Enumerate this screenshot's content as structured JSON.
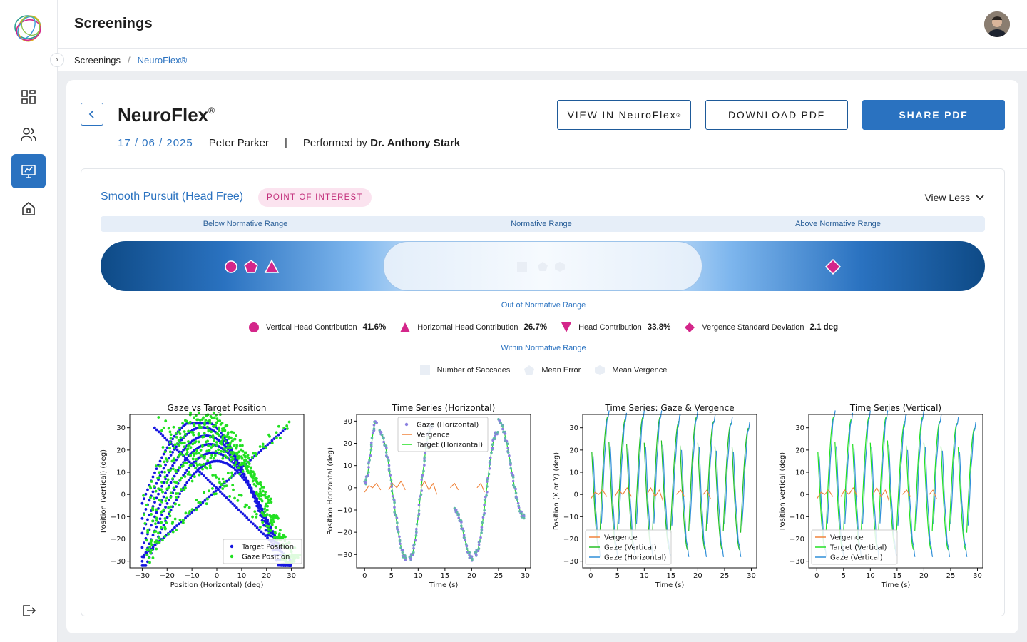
{
  "app": {
    "page_title": "Screenings"
  },
  "breadcrumb": {
    "root": "Screenings",
    "separator": "/",
    "current": "NeuroFlex®"
  },
  "header": {
    "title": "NeuroFlex",
    "title_mark": "®",
    "date": "17 / 06 / 2025",
    "patient": "Peter Parker",
    "pipe": "|",
    "performed_by_label": "Performed by",
    "performed_by": "Dr. Anthony Stark"
  },
  "actions": {
    "view_in": "VIEW IN NeuroFlex",
    "view_in_mark": "®",
    "download": "DOWNLOAD PDF",
    "share": "SHARE PDF"
  },
  "section": {
    "title": "Smooth Pursuit (Head Free)",
    "badge": "POINT OF INTEREST",
    "toggle": "View Less",
    "range_labels": {
      "below": "Below Normative Range",
      "normal": "Normative Range",
      "above": "Above Normative Range"
    },
    "out_label": "Out of Normative Range",
    "within_label": "Within Normative Range",
    "out_metrics": [
      {
        "shape": "circle",
        "label": "Vertical Head Contribution",
        "value": "41.6%"
      },
      {
        "shape": "triangle",
        "label": "Horizontal Head Contribution",
        "value": "26.7%"
      },
      {
        "shape": "triangle-down",
        "label": "Head Contribution",
        "value": "33.8%"
      },
      {
        "shape": "diamond",
        "label": "Vergence Standard Deviation",
        "value": "2.1 deg"
      }
    ],
    "within_metrics": [
      {
        "shape": "square",
        "label": "Number of Saccades"
      },
      {
        "shape": "pentagon",
        "label": "Mean Error"
      },
      {
        "shape": "hexagon",
        "label": "Mean Vergence"
      }
    ]
  },
  "colors": {
    "accent": "#2a72c0",
    "poi": "#c22e7b",
    "marker": "#d4268a",
    "blue": "#1616e0",
    "green": "#22e022",
    "orange": "#f0833a",
    "lightblue": "#2f8fd8",
    "purple": "#8a80e0",
    "teal": "#5fb8a8"
  },
  "chart_data": [
    {
      "type": "scatter",
      "title": "Gaze vs Target Position",
      "xlabel": "Position (Horizontal) (deg)",
      "ylabel": "Position (Vertical) (deg)",
      "xlim": [
        -35,
        35
      ],
      "ylim": [
        -33,
        36
      ],
      "xticks": [
        -30,
        -20,
        -10,
        0,
        10,
        20,
        30
      ],
      "yticks": [
        -30,
        -20,
        -10,
        0,
        10,
        20,
        30
      ],
      "legend": "bottom-right",
      "series": [
        {
          "name": "Target Position",
          "color": "#1616e0"
        },
        {
          "name": "Gaze Position",
          "color": "#22e022"
        }
      ]
    },
    {
      "type": "line",
      "title": "Time Series (Horizontal)",
      "xlabel": "Time (s)",
      "ylabel": "Position Horizontal (deg)",
      "xlim": [
        -1.5,
        31
      ],
      "ylim": [
        -36,
        33
      ],
      "xticks": [
        0,
        5,
        10,
        15,
        20,
        25,
        30
      ],
      "yticks": [
        -30,
        -20,
        -10,
        0,
        10,
        20,
        30
      ],
      "legend": "top-center",
      "series": [
        {
          "name": "Gaze (Horizontal)",
          "color": "#8a80e0"
        },
        {
          "name": "Vergence",
          "color": "#f0833a"
        },
        {
          "name": "Target (Horizontal)",
          "color": "#22e022"
        }
      ]
    },
    {
      "type": "line",
      "title": "Time Series: Gaze & Vergence",
      "xlabel": "Time (s)",
      "ylabel": "Position (X or Y) (deg)",
      "xlim": [
        -1.5,
        31
      ],
      "ylim": [
        -33,
        36
      ],
      "xticks": [
        0,
        5,
        10,
        15,
        20,
        25,
        30
      ],
      "yticks": [
        -30,
        -20,
        -10,
        0,
        10,
        20,
        30
      ],
      "legend": "bottom-left",
      "series": [
        {
          "name": "Vergence",
          "color": "#f0833a"
        },
        {
          "name": "Gaze (Vertical)",
          "color": "#22c022"
        },
        {
          "name": "Gaze (Horizontal)",
          "color": "#2f8fd8"
        }
      ]
    },
    {
      "type": "line",
      "title": "Time Series (Vertical)",
      "xlabel": "Time (s)",
      "ylabel": "Position Vertical (deg)",
      "xlim": [
        -1.5,
        31
      ],
      "ylim": [
        -33,
        36
      ],
      "xticks": [
        0,
        5,
        10,
        15,
        20,
        25,
        30
      ],
      "yticks": [
        -30,
        -20,
        -10,
        0,
        10,
        20,
        30
      ],
      "legend": "bottom-left",
      "series": [
        {
          "name": "Vergence",
          "color": "#f0833a"
        },
        {
          "name": "Target (Vertical)",
          "color": "#22e022"
        },
        {
          "name": "Gaze (Vertical)",
          "color": "#2f8fd8"
        }
      ]
    }
  ]
}
